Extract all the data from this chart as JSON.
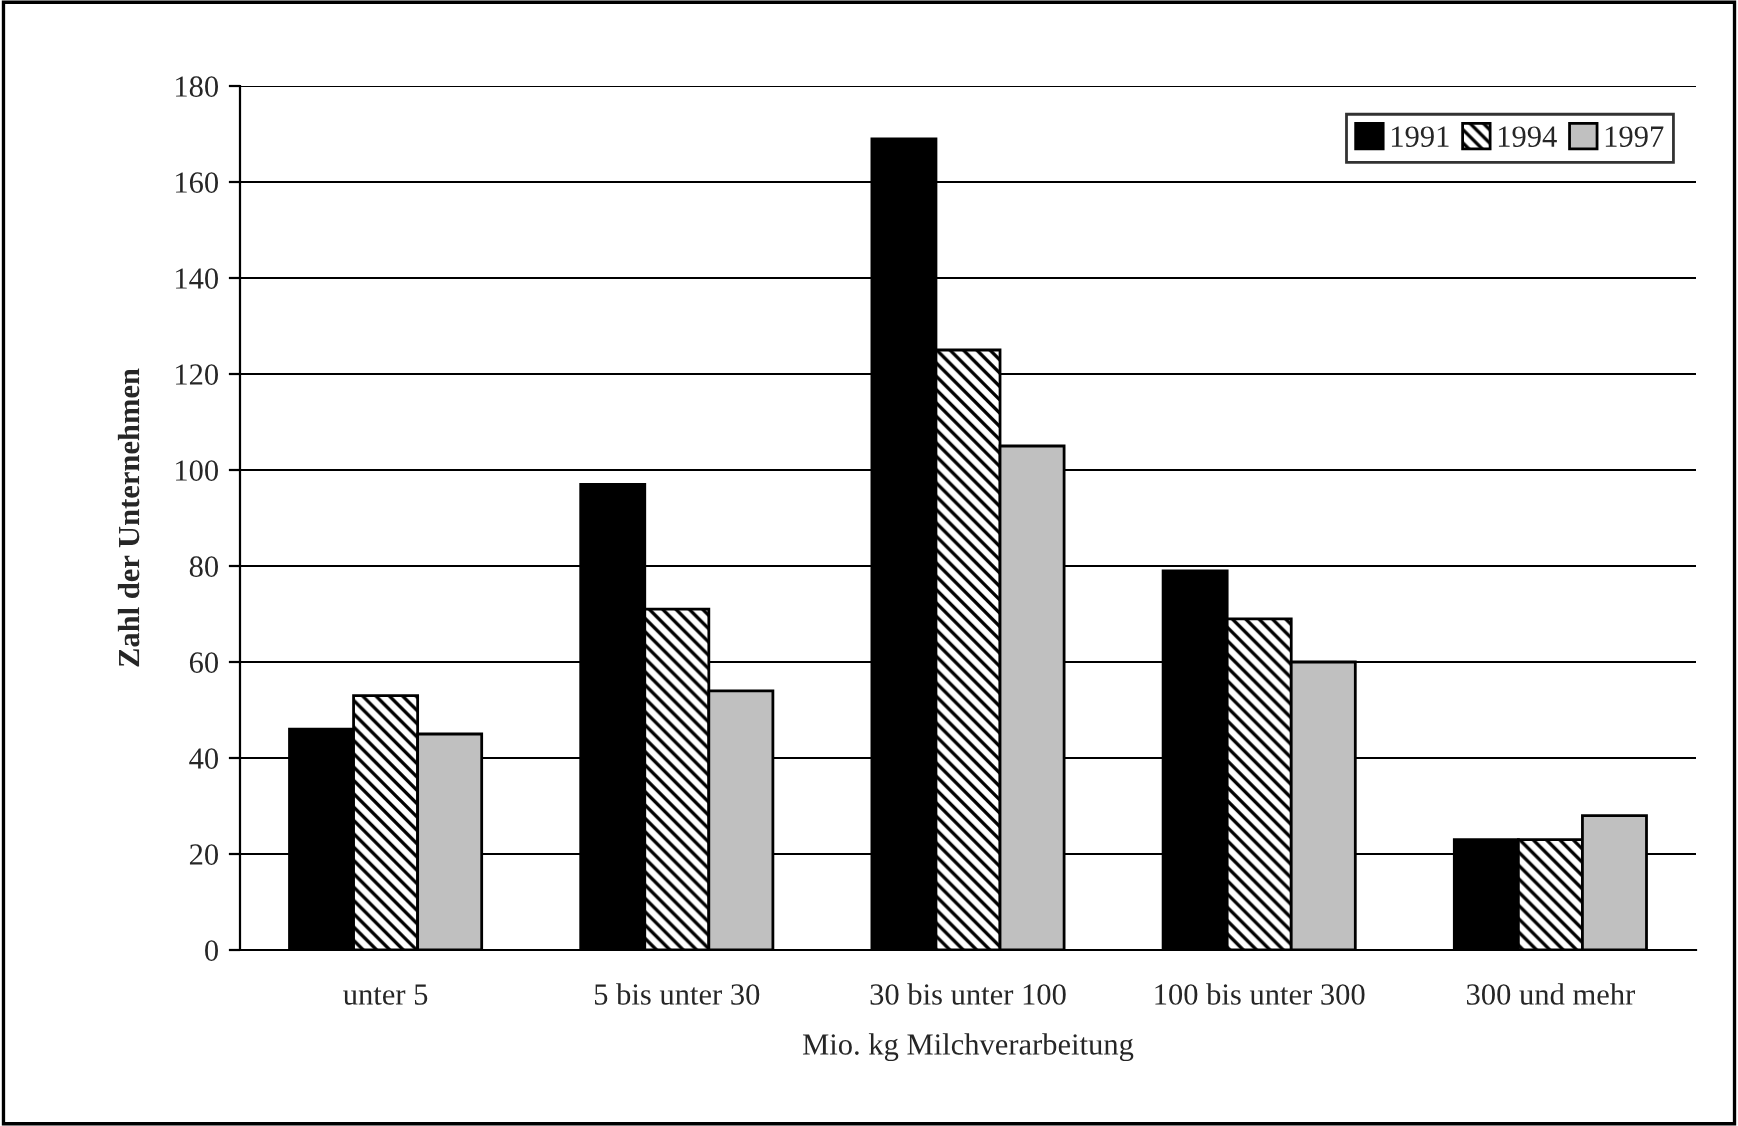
{
  "chart_data": {
    "type": "bar",
    "xlabel": "Mio. kg Milchverarbeitung",
    "ylabel": "Zahl der Unternehmen",
    "categories": [
      "unter 5",
      "5 bis unter 30",
      "30 bis unter 100",
      "100 bis unter 300",
      "300 und mehr"
    ],
    "series": [
      {
        "name": "1991",
        "color": "#000000",
        "values": [
          46,
          97,
          169,
          79,
          23
        ]
      },
      {
        "name": "1994",
        "color": "#000000",
        "values": [
          53,
          71,
          125,
          69,
          23
        ]
      },
      {
        "name": "1997",
        "color": "#c0c0c0",
        "values": [
          45,
          54,
          105,
          60,
          28
        ]
      }
    ],
    "ylim": [
      0,
      180
    ],
    "yticks": [
      0,
      20,
      40,
      60,
      80,
      100,
      120,
      140,
      160,
      180
    ],
    "grid": "y",
    "legend": "top right"
  }
}
